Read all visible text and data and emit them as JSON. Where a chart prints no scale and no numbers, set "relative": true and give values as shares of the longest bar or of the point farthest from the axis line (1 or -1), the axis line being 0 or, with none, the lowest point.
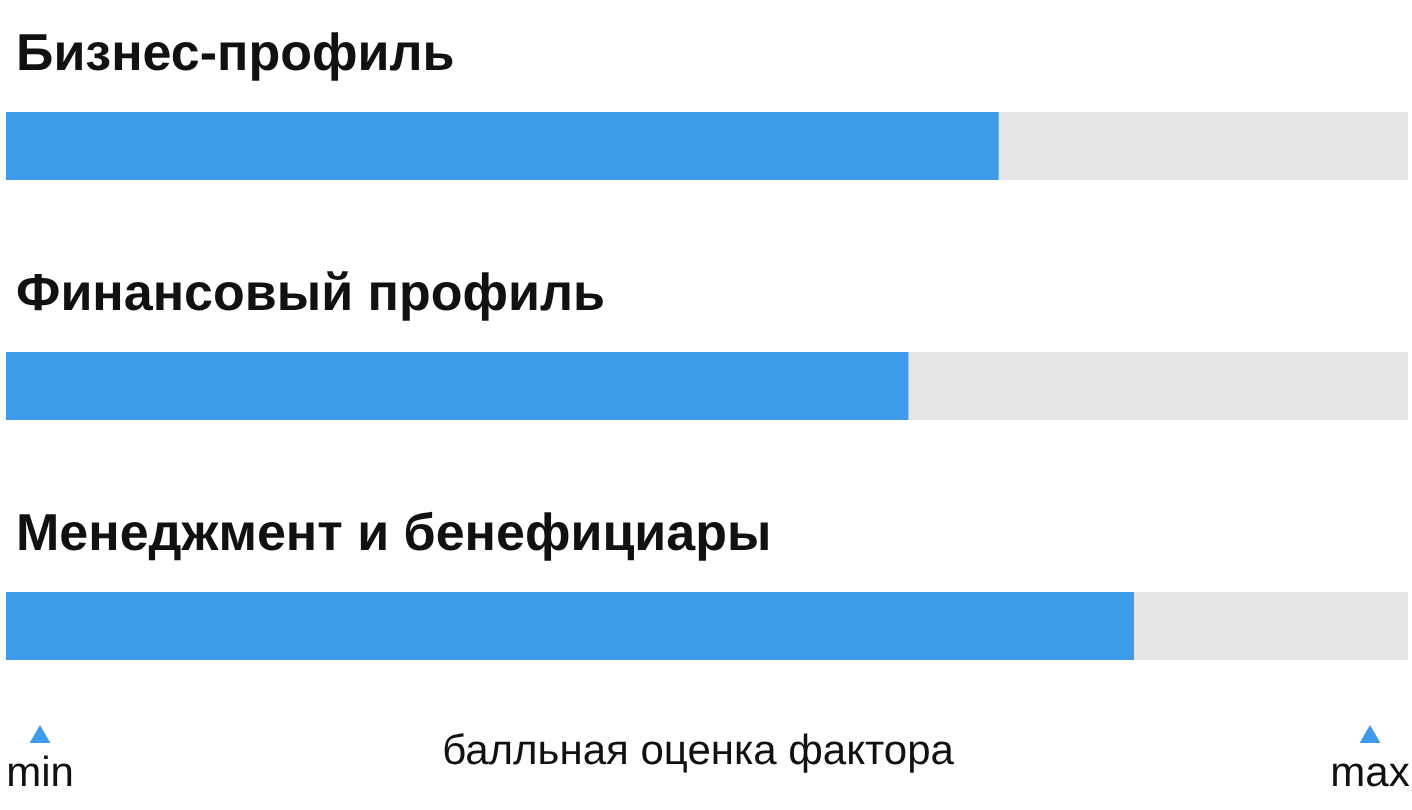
{
  "chart_data": {
    "type": "bar",
    "orientation": "horizontal",
    "relative": true,
    "categories": [
      "Бизнес-профиль",
      "Финансовый профиль",
      "Менеджмент и бенефициары"
    ],
    "series": [
      {
        "color": "#3d9be9",
        "values": [
          0.88,
          0.8,
          1
        ]
      }
    ],
    "xlabel": "балльная оценка фактора",
    "annotations": [
      "min",
      "max"
    ]
  }
}
